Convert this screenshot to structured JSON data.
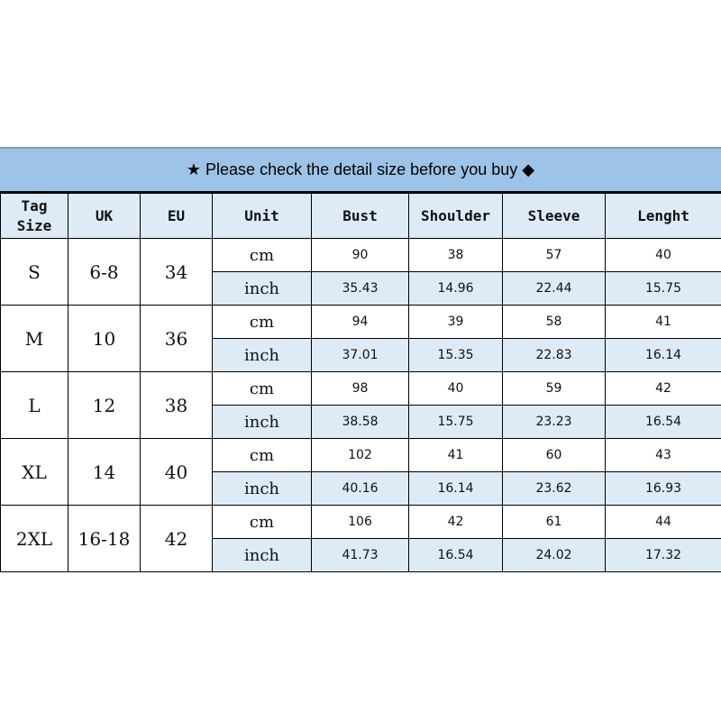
{
  "title": "★ Please check the detail size before you buy ◆",
  "headers": [
    "Tag\nSize",
    "UK",
    "EU",
    "Unit",
    "Bust",
    "Shoulder",
    "Sleeve",
    "Lenght"
  ],
  "colors": {
    "title_bg": "#9dc3e6",
    "header_bg": "#ddebf7",
    "inch_row_bg": "#ddebf7"
  },
  "rows": [
    {
      "tag": "S",
      "uk": "6-8",
      "eu": "34",
      "cm": {
        "unit": "cm",
        "values": [
          "90",
          "38",
          "57",
          "40"
        ]
      },
      "inch": {
        "unit": "inch",
        "values": [
          "35.43",
          "14.96",
          "22.44",
          "15.75"
        ]
      }
    },
    {
      "tag": "M",
      "uk": "10",
      "eu": "36",
      "cm": {
        "unit": "cm",
        "values": [
          "94",
          "39",
          "58",
          "41"
        ]
      },
      "inch": {
        "unit": "inch",
        "values": [
          "37.01",
          "15.35",
          "22.83",
          "16.14"
        ]
      }
    },
    {
      "tag": "L",
      "uk": "12",
      "eu": "38",
      "cm": {
        "unit": "cm",
        "values": [
          "98",
          "40",
          "59",
          "42"
        ]
      },
      "inch": {
        "unit": "inch",
        "values": [
          "38.58",
          "15.75",
          "23.23",
          "16.54"
        ]
      }
    },
    {
      "tag": "XL",
      "uk": "14",
      "eu": "40",
      "cm": {
        "unit": "cm",
        "values": [
          "102",
          "41",
          "60",
          "43"
        ]
      },
      "inch": {
        "unit": "inch",
        "values": [
          "40.16",
          "16.14",
          "23.62",
          "16.93"
        ]
      }
    },
    {
      "tag": "2XL",
      "uk": "16-18",
      "eu": "42",
      "cm": {
        "unit": "cm",
        "values": [
          "106",
          "42",
          "61",
          "44"
        ]
      },
      "inch": {
        "unit": "inch",
        "values": [
          "41.73",
          "16.54",
          "24.02",
          "17.32"
        ]
      }
    }
  ]
}
